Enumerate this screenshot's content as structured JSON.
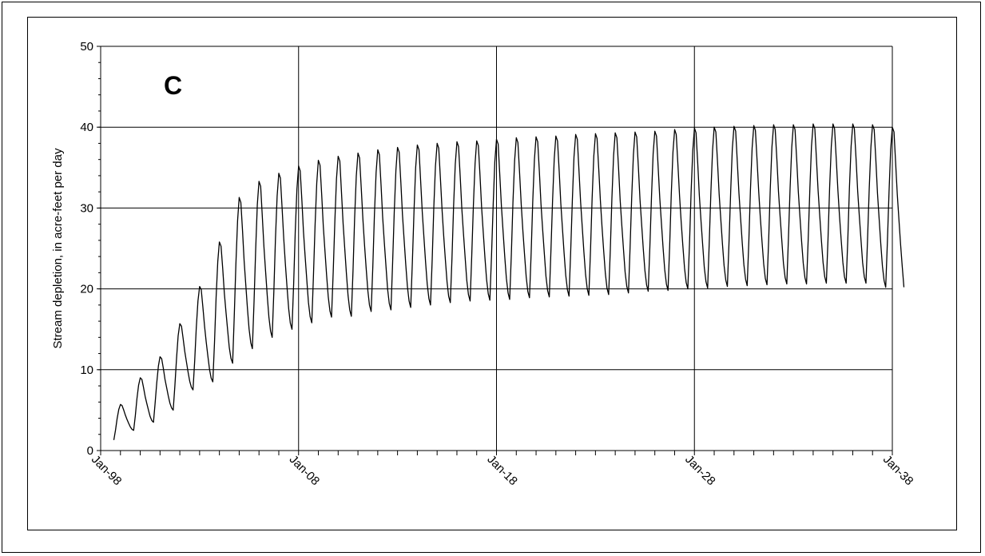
{
  "chart_data": {
    "type": "line",
    "panel_label": "C",
    "title": "",
    "xlabel": "",
    "ylabel": "Stream depletion, in acre-feet per day",
    "ylim": [
      0,
      50
    ],
    "yticks": [
      0,
      10,
      20,
      30,
      40,
      50
    ],
    "xlim": [
      "1998-01",
      "2038-01"
    ],
    "xtick_labels": [
      "Jan-98",
      "Jan-08",
      "Jan-18",
      "Jan-28",
      "Jan-38"
    ],
    "grid": true,
    "legend": "none",
    "line_color": "#000000",
    "series": [
      {
        "x_start": "1998-01",
        "step": "monthly",
        "seasonal_peaks": [
          5.7,
          9.0,
          11.6,
          15.7,
          20.3,
          25.8,
          31.3,
          33.3,
          34.3,
          35.2,
          35.9,
          36.4,
          36.8,
          37.2,
          37.5,
          37.8,
          38.0,
          38.2,
          38.3,
          38.5,
          38.7,
          38.8,
          38.9,
          39.1,
          39.2,
          39.3,
          39.4,
          39.5,
          39.7,
          39.9,
          40.0,
          40.1,
          40.2,
          40.3,
          40.3,
          40.4,
          40.4,
          40.4,
          40.3,
          40.0
        ],
        "seasonal_troughs": [
          1.3,
          2.5,
          3.5,
          5.0,
          7.5,
          8.5,
          10.8,
          12.6,
          14.0,
          15.0,
          15.8,
          16.5,
          16.6,
          17.2,
          17.4,
          17.7,
          18.0,
          18.3,
          18.5,
          18.6,
          18.7,
          18.9,
          19.0,
          19.1,
          19.2,
          19.3,
          19.5,
          19.7,
          19.8,
          20.0,
          20.1,
          20.3,
          20.4,
          20.5,
          20.6,
          20.6,
          20.7,
          20.7,
          20.7,
          20.2
        ]
      }
    ]
  }
}
